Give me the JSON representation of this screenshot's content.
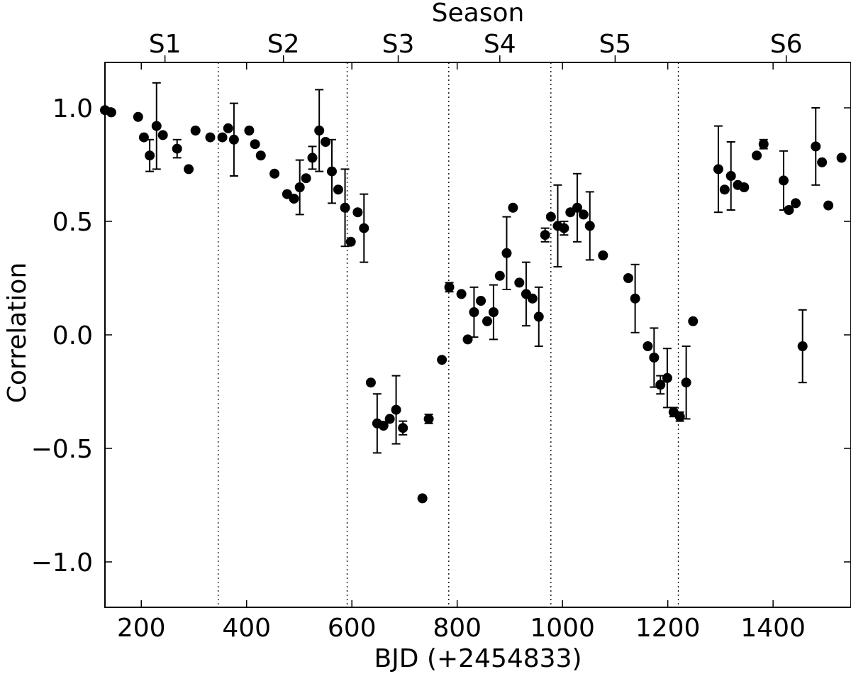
{
  "chart_data": {
    "type": "scatter",
    "title": "",
    "xlabel": "BJD (+2454833)",
    "ylabel": "Correlation",
    "top_axis_label": "Season",
    "xlim": [
      131,
      1548
    ],
    "ylim": [
      -1.2,
      1.2
    ],
    "x_ticks": [
      200,
      400,
      600,
      800,
      1000,
      1200,
      1400
    ],
    "x_tick_labels": [
      "200",
      "400",
      "600",
      "800",
      "1000",
      "1200",
      "1400"
    ],
    "y_ticks": [
      1.0,
      0.5,
      0.0,
      -0.5,
      -1.0
    ],
    "y_tick_labels": [
      "1.0",
      "0.5",
      "0.0",
      "−0.5",
      "−1.0"
    ],
    "season_boundaries": [
      346,
      591,
      784,
      978,
      1220
    ],
    "seasons": [
      {
        "label": "S1",
        "x": 245
      },
      {
        "label": "S2",
        "x": 470
      },
      {
        "label": "S3",
        "x": 688
      },
      {
        "label": "S4",
        "x": 881
      },
      {
        "label": "S5",
        "x": 1100
      },
      {
        "label": "S6",
        "x": 1425
      }
    ],
    "grid": false,
    "marker_color": "#000000",
    "points": [
      {
        "x": 131,
        "y": 0.99,
        "err": 0
      },
      {
        "x": 143,
        "y": 0.98,
        "err": 0
      },
      {
        "x": 194,
        "y": 0.96,
        "err": 0
      },
      {
        "x": 205,
        "y": 0.87,
        "err": 0
      },
      {
        "x": 216,
        "y": 0.79,
        "err": 0.07
      },
      {
        "x": 229,
        "y": 0.92,
        "err": 0.19
      },
      {
        "x": 241,
        "y": 0.88,
        "err": 0
      },
      {
        "x": 268,
        "y": 0.82,
        "err": 0.04
      },
      {
        "x": 290,
        "y": 0.73,
        "err": 0
      },
      {
        "x": 303,
        "y": 0.9,
        "err": 0
      },
      {
        "x": 331,
        "y": 0.87,
        "err": 0
      },
      {
        "x": 354,
        "y": 0.87,
        "err": 0
      },
      {
        "x": 365,
        "y": 0.91,
        "err": 0
      },
      {
        "x": 376,
        "y": 0.86,
        "err": 0.16
      },
      {
        "x": 405,
        "y": 0.9,
        "err": 0
      },
      {
        "x": 416,
        "y": 0.84,
        "err": 0
      },
      {
        "x": 427,
        "y": 0.79,
        "err": 0
      },
      {
        "x": 453,
        "y": 0.71,
        "err": 0
      },
      {
        "x": 477,
        "y": 0.62,
        "err": 0
      },
      {
        "x": 490,
        "y": 0.6,
        "err": 0
      },
      {
        "x": 501,
        "y": 0.65,
        "err": 0.12
      },
      {
        "x": 513,
        "y": 0.69,
        "err": 0
      },
      {
        "x": 525,
        "y": 0.78,
        "err": 0.05
      },
      {
        "x": 538,
        "y": 0.9,
        "err": 0.18
      },
      {
        "x": 550,
        "y": 0.85,
        "err": 0
      },
      {
        "x": 562,
        "y": 0.72,
        "err": 0.14
      },
      {
        "x": 574,
        "y": 0.64,
        "err": 0
      },
      {
        "x": 587,
        "y": 0.56,
        "err": 0.17
      },
      {
        "x": 598,
        "y": 0.41,
        "err": 0
      },
      {
        "x": 611,
        "y": 0.54,
        "err": 0
      },
      {
        "x": 623,
        "y": 0.47,
        "err": 0.15
      },
      {
        "x": 636,
        "y": -0.21,
        "err": 0
      },
      {
        "x": 648,
        "y": -0.39,
        "err": 0.13
      },
      {
        "x": 660,
        "y": -0.4,
        "err": 0
      },
      {
        "x": 672,
        "y": -0.37,
        "err": 0
      },
      {
        "x": 684,
        "y": -0.33,
        "err": 0.15
      },
      {
        "x": 697,
        "y": -0.41,
        "err": 0.03
      },
      {
        "x": 734,
        "y": -0.72,
        "err": 0
      },
      {
        "x": 746,
        "y": -0.37,
        "err": 0.02
      },
      {
        "x": 771,
        "y": -0.11,
        "err": 0
      },
      {
        "x": 785,
        "y": 0.21,
        "err": 0.02
      },
      {
        "x": 808,
        "y": 0.18,
        "err": 0
      },
      {
        "x": 820,
        "y": -0.02,
        "err": 0
      },
      {
        "x": 832,
        "y": 0.1,
        "err": 0.11
      },
      {
        "x": 845,
        "y": 0.15,
        "err": 0
      },
      {
        "x": 857,
        "y": 0.06,
        "err": 0
      },
      {
        "x": 869,
        "y": 0.1,
        "err": 0.12
      },
      {
        "x": 881,
        "y": 0.26,
        "err": 0
      },
      {
        "x": 894,
        "y": 0.36,
        "err": 0.16
      },
      {
        "x": 906,
        "y": 0.56,
        "err": 0
      },
      {
        "x": 918,
        "y": 0.23,
        "err": 0
      },
      {
        "x": 931,
        "y": 0.18,
        "err": 0.14
      },
      {
        "x": 943,
        "y": 0.16,
        "err": 0
      },
      {
        "x": 955,
        "y": 0.08,
        "err": 0.13
      },
      {
        "x": 967,
        "y": 0.44,
        "err": 0.03
      },
      {
        "x": 978,
        "y": 0.52,
        "err": 0
      },
      {
        "x": 991,
        "y": 0.48,
        "err": 0.18
      },
      {
        "x": 1003,
        "y": 0.47,
        "err": 0.03
      },
      {
        "x": 1015,
        "y": 0.54,
        "err": 0
      },
      {
        "x": 1028,
        "y": 0.56,
        "err": 0.15
      },
      {
        "x": 1040,
        "y": 0.53,
        "err": 0
      },
      {
        "x": 1052,
        "y": 0.48,
        "err": 0.15
      },
      {
        "x": 1077,
        "y": 0.35,
        "err": 0
      },
      {
        "x": 1125,
        "y": 0.25,
        "err": 0
      },
      {
        "x": 1138,
        "y": 0.16,
        "err": 0.15
      },
      {
        "x": 1162,
        "y": -0.05,
        "err": 0
      },
      {
        "x": 1174,
        "y": -0.1,
        "err": 0.13
      },
      {
        "x": 1186,
        "y": -0.22,
        "err": 0.04
      },
      {
        "x": 1199,
        "y": -0.19,
        "err": 0.13
      },
      {
        "x": 1211,
        "y": -0.34,
        "err": 0.02
      },
      {
        "x": 1223,
        "y": -0.36,
        "err": 0.02
      },
      {
        "x": 1235,
        "y": -0.21,
        "err": 0.16
      },
      {
        "x": 1248,
        "y": 0.06,
        "err": 0
      },
      {
        "x": 1296,
        "y": 0.73,
        "err": 0.19
      },
      {
        "x": 1308,
        "y": 0.64,
        "err": 0
      },
      {
        "x": 1320,
        "y": 0.7,
        "err": 0.15
      },
      {
        "x": 1333,
        "y": 0.66,
        "err": 0
      },
      {
        "x": 1345,
        "y": 0.65,
        "err": 0
      },
      {
        "x": 1369,
        "y": 0.79,
        "err": 0
      },
      {
        "x": 1382,
        "y": 0.84,
        "err": 0.02
      },
      {
        "x": 1420,
        "y": 0.68,
        "err": 0.13
      },
      {
        "x": 1430,
        "y": 0.55,
        "err": 0
      },
      {
        "x": 1443,
        "y": 0.58,
        "err": 0
      },
      {
        "x": 1456,
        "y": -0.05,
        "err": 0.16
      },
      {
        "x": 1481,
        "y": 0.83,
        "err": 0.17
      },
      {
        "x": 1493,
        "y": 0.76,
        "err": 0
      },
      {
        "x": 1505,
        "y": 0.57,
        "err": 0
      },
      {
        "x": 1530,
        "y": 0.78,
        "err": 0
      }
    ]
  }
}
